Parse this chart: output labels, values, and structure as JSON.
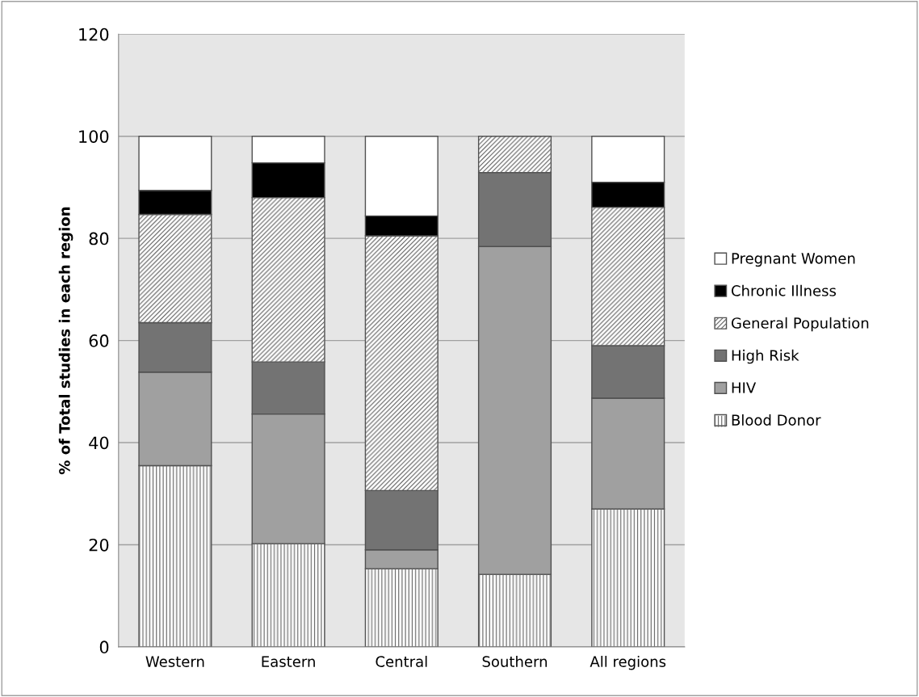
{
  "chart_data": {
    "type": "bar",
    "stacked": true,
    "ylabel": "% of Total studies in each region",
    "categories": [
      "Western",
      "Eastern",
      "Central",
      "Southern",
      "All regions"
    ],
    "series": [
      {
        "name": "Blood Donor",
        "color": "#ffffff",
        "values": [
          35.5,
          20.2,
          15.3,
          14.2,
          27.0
        ]
      },
      {
        "name": "HIV",
        "color": "#a0a0a0",
        "values": [
          18.3,
          25.4,
          3.7,
          64.2,
          21.7
        ]
      },
      {
        "name": "High Risk",
        "color": "#737373",
        "values": [
          9.7,
          10.2,
          11.6,
          14.5,
          10.3
        ]
      },
      {
        "name": "General Population",
        "color": "#ffffff",
        "values": [
          21.2,
          32.2,
          49.9,
          7.1,
          27.1
        ]
      },
      {
        "name": "Chronic Illness",
        "color": "#000000",
        "values": [
          4.7,
          6.8,
          3.9,
          0,
          4.9
        ]
      },
      {
        "name": "Pregnant Women",
        "color": "#ffffff",
        "values": [
          10.6,
          5.2,
          15.6,
          0,
          9.0
        ]
      }
    ],
    "ylim": [
      0,
      120
    ],
    "yticks": [
      0,
      20,
      40,
      60,
      80,
      100,
      120
    ],
    "grid": "y",
    "legend": "right"
  }
}
